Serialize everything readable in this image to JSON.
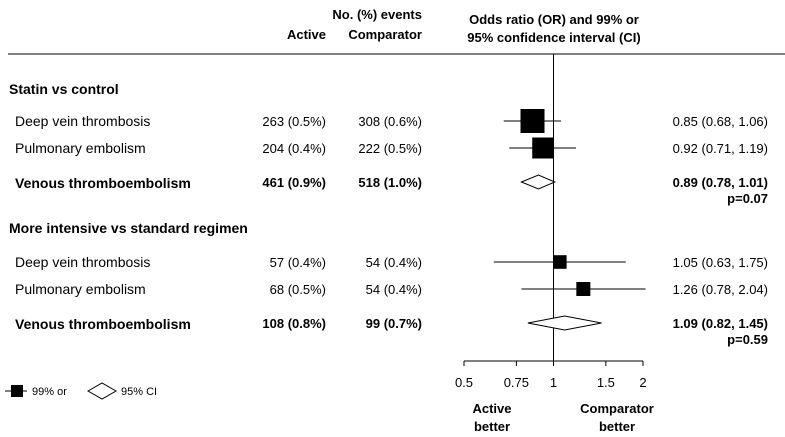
{
  "header": {
    "events_label": "No. (%) events",
    "active_label": "Active",
    "comparator_label": "Comparator",
    "or_label_line1": "Odds ratio (OR) and 99% or",
    "or_label_line2": "95% confidence interval (CI)"
  },
  "chart_data": {
    "type": "forest",
    "x_scale": "log",
    "reference_line": 1,
    "xlim": [
      0.5,
      2
    ],
    "ticks": [
      {
        "value": 0.5,
        "label": "0.5"
      },
      {
        "value": 0.75,
        "label": "0.75"
      },
      {
        "value": 1,
        "label": "1"
      },
      {
        "value": 1.5,
        "label": "1.5"
      },
      {
        "value": 2,
        "label": "2"
      }
    ],
    "x_left_label_line1": "Active",
    "x_left_label_line2": "better",
    "x_right_label_line1": "Comparator",
    "x_right_label_line2": "better",
    "legend": {
      "square_label": "99% or",
      "diamond_label": "95% CI"
    },
    "groups": [
      {
        "title": "Statin vs control",
        "rows": [
          {
            "label": "Deep vein thrombosis",
            "active": "263 (0.5%)",
            "comparator": "308 (0.6%)",
            "or_text": "0.85 (0.68, 1.06)",
            "or": 0.85,
            "ci_low": 0.68,
            "ci_high": 1.06,
            "marker": "square",
            "weight": 1.0
          },
          {
            "label": "Pulmonary embolism",
            "active": "204 (0.4%)",
            "comparator": "222 (0.5%)",
            "or_text": "0.92 (0.71, 1.19)",
            "or": 0.92,
            "ci_low": 0.71,
            "ci_high": 1.19,
            "marker": "square",
            "weight": 0.85
          }
        ],
        "total": {
          "label": "Venous thromboembolism",
          "active": "461 (0.9%)",
          "comparator": "518 (1.0%)",
          "or_text": "0.89 (0.78, 1.01)",
          "p_text": "p=0.07",
          "or": 0.89,
          "ci_low": 0.78,
          "ci_high": 1.01,
          "marker": "diamond"
        }
      },
      {
        "title": "More intensive vs standard regimen",
        "rows": [
          {
            "label": "Deep vein thrombosis",
            "active": "57 (0.4%)",
            "comparator": "54 (0.4%)",
            "or_text": "1.05 (0.63, 1.75)",
            "or": 1.05,
            "ci_low": 0.63,
            "ci_high": 1.75,
            "marker": "square",
            "weight": 0.48
          },
          {
            "label": "Pulmonary embolism",
            "active": "68 (0.5%)",
            "comparator": "54 (0.4%)",
            "or_text": "1.26 (0.78, 2.04)",
            "or": 1.26,
            "ci_low": 0.78,
            "ci_high": 2.04,
            "marker": "square",
            "weight": 0.5
          }
        ],
        "total": {
          "label": "Venous thromboembolism",
          "active": "108 (0.8%)",
          "comparator": "99 (0.7%)",
          "or_text": "1.09 (0.82, 1.45)",
          "p_text": "p=0.59",
          "or": 1.09,
          "ci_low": 0.82,
          "ci_high": 1.45,
          "marker": "diamond"
        }
      }
    ]
  }
}
